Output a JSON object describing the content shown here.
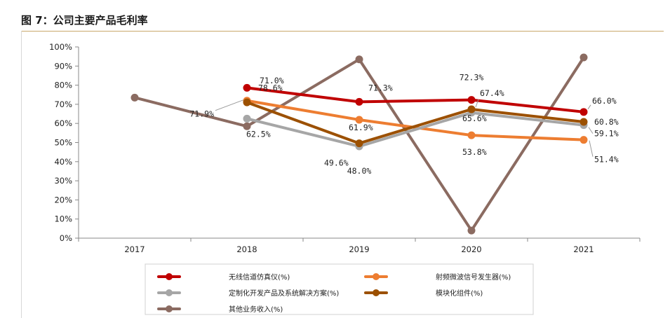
{
  "figure": {
    "title": "图 7：公司主要产品毛利率"
  },
  "chart_data": {
    "type": "line",
    "title": "",
    "xlabel": "",
    "ylabel": "",
    "categories": [
      "2017",
      "2018",
      "2019",
      "2020",
      "2021"
    ],
    "ylim": [
      0,
      100
    ],
    "yticks": [
      "0%",
      "10%",
      "20%",
      "30%",
      "40%",
      "50%",
      "60%",
      "70%",
      "80%",
      "90%",
      "100%"
    ],
    "grid": false,
    "legend_position": "bottom",
    "series": [
      {
        "name": "无线信道仿真仪(%)",
        "color": "#c00000",
        "values": [
          null,
          78.6,
          71.3,
          72.3,
          66.0
        ],
        "labels": [
          "",
          "78.6%",
          "71.3%",
          "72.3%",
          "66.0%"
        ]
      },
      {
        "name": "射频微波信号发生器(%)",
        "color": "#ed7d31",
        "values": [
          null,
          71.9,
          61.9,
          53.8,
          51.4
        ],
        "labels": [
          "",
          "71.9%",
          "61.9%",
          "53.8%",
          "51.4%"
        ]
      },
      {
        "name": "定制化开发产品及系统解决方案(%)",
        "color": "#a6a6a6",
        "values": [
          null,
          62.5,
          48.0,
          65.6,
          59.1
        ],
        "labels": [
          "",
          "62.5%",
          "48.0%",
          "65.6%",
          "59.1%"
        ]
      },
      {
        "name": "模块化组件(%)",
        "color": "#9c5000",
        "values": [
          null,
          71.0,
          49.6,
          67.4,
          60.8
        ],
        "labels": [
          "",
          "71.0%",
          "49.6%",
          "67.4%",
          "60.8%"
        ]
      },
      {
        "name": "其他业务收入(%)",
        "color": "#8b6b61",
        "values": [
          73.5,
          58.5,
          93.5,
          4.0,
          94.5
        ],
        "labels": [
          "",
          "",
          "",
          "",
          ""
        ]
      }
    ]
  }
}
